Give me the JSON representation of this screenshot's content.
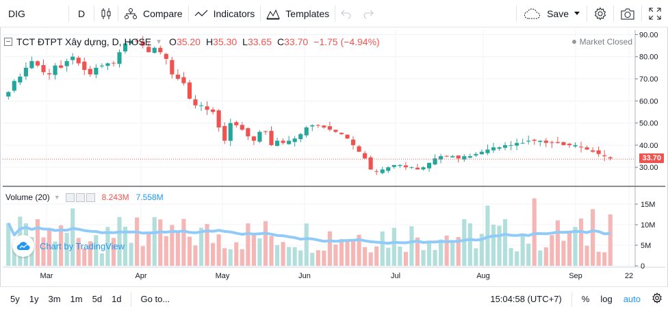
{
  "toolbar": {
    "symbol": "DIG",
    "interval": "D",
    "compare": "Compare",
    "indicators": "Indicators",
    "templates": "Templates",
    "save": "Save"
  },
  "legend": {
    "title": "TCT ĐTPT Xây dựng, D, HOSE",
    "o_label": "O",
    "o": "35.20",
    "h_label": "H",
    "h": "35.30",
    "l_label": "L",
    "l": "33.65",
    "c_label": "C",
    "c": "33.70",
    "change": "−1.75 (−4.94%)",
    "market_status": "Market Closed"
  },
  "volume_legend": {
    "label": "Volume (20)",
    "value": "8.243M",
    "ma": "7.558M"
  },
  "branding": "Chart by TradingView",
  "colors": {
    "up": "#26a69a",
    "down": "#ef5350",
    "vol_up": "#b2dfdb",
    "vol_down": "#f5b7b5",
    "ma": "#90caf9",
    "accent": "#2196f3"
  },
  "chart_data": {
    "type": "candlestick",
    "price_axis": [
      "90.00",
      "80.00",
      "70.00",
      "60.00",
      "50.00",
      "40.00",
      "30.00"
    ],
    "volume_axis": [
      "15M",
      "10M",
      "5M",
      "0"
    ],
    "x_labels": [
      "Mar",
      "Apr",
      "May",
      "Jun",
      "Jul",
      "Aug",
      "Sep",
      "22"
    ],
    "last_price": "33.70",
    "ylim": [
      22,
      92
    ],
    "vol_ylim": [
      0,
      17
    ],
    "close": [
      64,
      69,
      71,
      75,
      78,
      76,
      73,
      72,
      76,
      75,
      78,
      80,
      77,
      74,
      72,
      75,
      76,
      77,
      77,
      82,
      86,
      87,
      87,
      85,
      82,
      84,
      82,
      79,
      72,
      70,
      68,
      61,
      58,
      58,
      56,
      55,
      48,
      42,
      50,
      49,
      47,
      44,
      42,
      46,
      46,
      40,
      42,
      41,
      42,
      43,
      45,
      48,
      49,
      49,
      48,
      47,
      46,
      45,
      43,
      40,
      37,
      34,
      29,
      28,
      29,
      30,
      31,
      31,
      30,
      30,
      29,
      30,
      32,
      34,
      35,
      35,
      35,
      34,
      35,
      35,
      36,
      37,
      38,
      39,
      39,
      40,
      40,
      41,
      41,
      42,
      42,
      42,
      41,
      41,
      41,
      40,
      40,
      40,
      39,
      38,
      37,
      36,
      35,
      34
    ]
  },
  "bottom": {
    "ranges": [
      "5y",
      "1y",
      "3m",
      "1m",
      "5d",
      "1d"
    ],
    "goto": "Go to...",
    "time": "15:04:58 (UTC+7)",
    "percent": "%",
    "log": "log",
    "auto": "auto"
  }
}
